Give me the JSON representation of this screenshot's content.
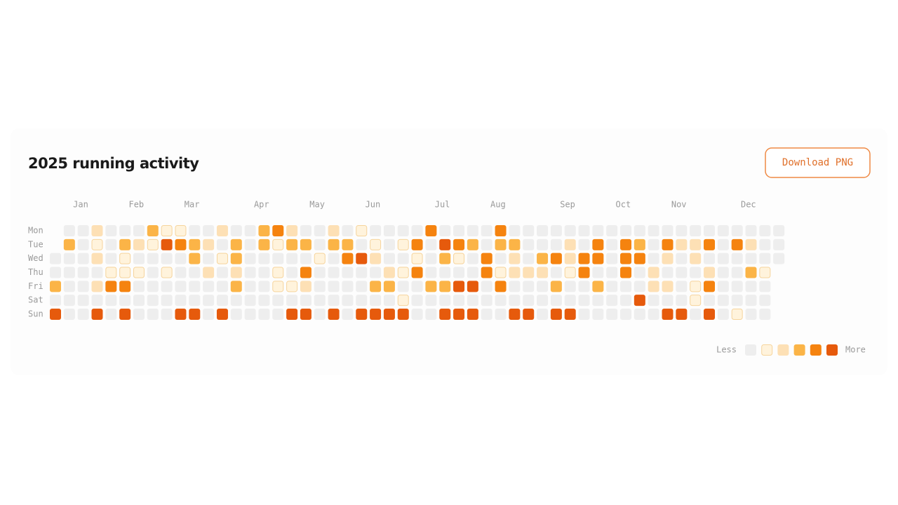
{
  "header": {
    "title": "2025 running activity",
    "button": "Download PNG"
  },
  "chart_data": {
    "type": "heatmap",
    "categories": [
      "Jan",
      "Feb",
      "Mar",
      "Apr",
      "May",
      "Jun",
      "Jul",
      "Aug",
      "Sep",
      "Oct",
      "Nov",
      "Dec"
    ],
    "rows": [
      "Mon",
      "Tue",
      "Wed",
      "Thu",
      "Fri",
      "Sat",
      "Sun"
    ],
    "values": [
      [
        null,
        0,
        0,
        2,
        0,
        0,
        0,
        3,
        1,
        1,
        0,
        0,
        2,
        0,
        0,
        3,
        4,
        2,
        0,
        0,
        2,
        0,
        1,
        0,
        0,
        0,
        0,
        4,
        0,
        0,
        0,
        0,
        4,
        0,
        0,
        0,
        0,
        0,
        0,
        0,
        0,
        0,
        0,
        0,
        0,
        0,
        0,
        0,
        0,
        0,
        0,
        0,
        0
      ],
      [
        null,
        3,
        0,
        1,
        0,
        3,
        2,
        1,
        5,
        4,
        3,
        2,
        0,
        3,
        0,
        3,
        1,
        3,
        3,
        0,
        3,
        3,
        0,
        1,
        0,
        1,
        4,
        0,
        5,
        4,
        3,
        0,
        3,
        3,
        0,
        0,
        0,
        2,
        0,
        4,
        0,
        4,
        3,
        0,
        4,
        2,
        2,
        4,
        0,
        4,
        2,
        0,
        0
      ],
      [
        0,
        0,
        0,
        2,
        0,
        1,
        0,
        0,
        0,
        0,
        3,
        0,
        1,
        3,
        0,
        0,
        0,
        0,
        0,
        1,
        0,
        4,
        5,
        2,
        0,
        0,
        1,
        0,
        3,
        1,
        0,
        4,
        0,
        2,
        0,
        3,
        4,
        2,
        4,
        4,
        0,
        4,
        4,
        0,
        2,
        0,
        2,
        0,
        0,
        0,
        0,
        0,
        0
      ],
      [
        0,
        0,
        0,
        0,
        1,
        1,
        1,
        0,
        1,
        0,
        0,
        2,
        0,
        2,
        0,
        0,
        1,
        0,
        4,
        0,
        0,
        0,
        0,
        0,
        2,
        1,
        4,
        0,
        0,
        0,
        0,
        4,
        1,
        2,
        2,
        2,
        0,
        1,
        4,
        0,
        0,
        4,
        0,
        2,
        0,
        0,
        0,
        2,
        0,
        0,
        3,
        1,
        null
      ],
      [
        3,
        0,
        0,
        2,
        4,
        4,
        0,
        0,
        0,
        0,
        0,
        0,
        0,
        3,
        0,
        0,
        1,
        1,
        2,
        0,
        0,
        0,
        0,
        3,
        3,
        0,
        0,
        3,
        3,
        5,
        5,
        0,
        4,
        0,
        0,
        0,
        3,
        0,
        0,
        3,
        0,
        0,
        0,
        2,
        2,
        0,
        1,
        4,
        0,
        0,
        0,
        0,
        null
      ],
      [
        0,
        0,
        0,
        0,
        0,
        0,
        0,
        0,
        0,
        0,
        0,
        0,
        0,
        0,
        0,
        0,
        0,
        0,
        0,
        0,
        0,
        0,
        0,
        0,
        0,
        1,
        0,
        0,
        0,
        0,
        0,
        0,
        0,
        0,
        0,
        0,
        0,
        0,
        0,
        0,
        0,
        0,
        5,
        0,
        0,
        0,
        1,
        0,
        0,
        0,
        0,
        0,
        null
      ],
      [
        5,
        0,
        0,
        5,
        0,
        5,
        0,
        0,
        0,
        5,
        5,
        0,
        5,
        0,
        0,
        0,
        0,
        5,
        5,
        0,
        5,
        0,
        5,
        5,
        5,
        5,
        0,
        0,
        5,
        5,
        5,
        0,
        0,
        5,
        5,
        0,
        5,
        5,
        0,
        0,
        0,
        0,
        0,
        0,
        5,
        5,
        0,
        5,
        0,
        1,
        0,
        0,
        null
      ]
    ],
    "colors": [
      "#eeeeee",
      "#fff3dc",
      "#fde0b5",
      "#fbb447",
      "#f5830f",
      "#e65a0c"
    ],
    "legend": {
      "less": "Less",
      "more": "More"
    }
  }
}
